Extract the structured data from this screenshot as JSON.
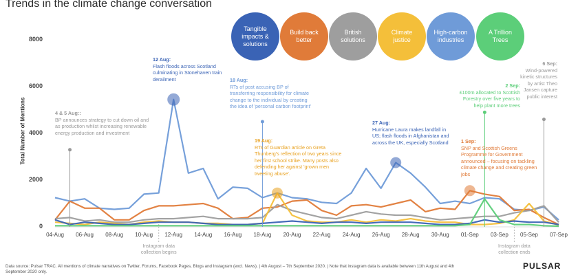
{
  "title": "Trends in the climate change conversation",
  "legend": [
    {
      "label": "Tangible impacts & solutions",
      "color": "#3a63b5"
    },
    {
      "label": "Build back better",
      "color": "#e07b39"
    },
    {
      "label": "British solutions",
      "color": "#9e9e9e"
    },
    {
      "label": "Climate justice",
      "color": "#f4bf3a"
    },
    {
      "label": "High-carbon industries",
      "color": "#6f9bd8"
    },
    {
      "label": "A Trillion Trees",
      "color": "#5cce79"
    }
  ],
  "chart_data": {
    "type": "line",
    "title": "Trends in the climate change conversation",
    "ylabel": "Total Number of Mentions",
    "ylim": [
      0,
      8000
    ],
    "yticks": [
      "0",
      "2000",
      "4000",
      "6000",
      "8000"
    ],
    "x_tick_labels": [
      "04-Aug",
      "06-Aug",
      "08-Aug",
      "10-Aug",
      "12-Aug",
      "14-Aug",
      "16-Aug",
      "18-Aug",
      "20-Aug",
      "22-Aug",
      "24-Aug",
      "26-Aug",
      "28-Aug",
      "30-Aug",
      "01-Sep",
      "03-Sep",
      "05-Sep",
      "07-Sep"
    ],
    "x": [
      "04-Aug",
      "05-Aug",
      "06-Aug",
      "07-Aug",
      "08-Aug",
      "09-Aug",
      "10-Aug",
      "11-Aug",
      "12-Aug",
      "13-Aug",
      "14-Aug",
      "15-Aug",
      "16-Aug",
      "17-Aug",
      "18-Aug",
      "19-Aug",
      "20-Aug",
      "21-Aug",
      "22-Aug",
      "23-Aug",
      "24-Aug",
      "25-Aug",
      "26-Aug",
      "27-Aug",
      "28-Aug",
      "29-Aug",
      "30-Aug",
      "31-Aug",
      "01-Sep",
      "02-Sep",
      "03-Sep",
      "04-Sep",
      "05-Sep",
      "06-Sep",
      "07-Sep"
    ],
    "grid": false,
    "series": [
      {
        "name": "Tangible impacts & solutions",
        "color": "#6f9bd8",
        "values": [
          1250,
          1100,
          1200,
          800,
          750,
          800,
          1400,
          1450,
          5450,
          2300,
          2500,
          1200,
          1700,
          1650,
          1250,
          1450,
          1250,
          1200,
          1050,
          1000,
          1450,
          2500,
          1650,
          2750,
          2300,
          1700,
          1000,
          1100,
          1000,
          1250,
          1200,
          750,
          700,
          850,
          300
        ]
      },
      {
        "name": "Build back better",
        "color": "#e07b39",
        "values": [
          300,
          1100,
          800,
          800,
          300,
          300,
          700,
          900,
          900,
          950,
          1000,
          800,
          350,
          400,
          800,
          850,
          1100,
          1150,
          700,
          500,
          900,
          950,
          850,
          1000,
          1150,
          650,
          800,
          750,
          1550,
          1400,
          1300,
          700,
          750,
          400,
          100
        ]
      },
      {
        "name": "British solutions",
        "color": "#9e9e9e",
        "values": [
          350,
          400,
          250,
          300,
          200,
          200,
          300,
          350,
          350,
          400,
          450,
          350,
          350,
          350,
          400,
          950,
          700,
          550,
          400,
          350,
          500,
          650,
          550,
          500,
          500,
          400,
          300,
          350,
          400,
          450,
          450,
          600,
          700,
          900,
          200
        ]
      },
      {
        "name": "Climate justice",
        "color": "#f4bf3a",
        "values": [
          200,
          150,
          100,
          200,
          150,
          100,
          200,
          250,
          200,
          200,
          150,
          150,
          100,
          100,
          150,
          1450,
          500,
          250,
          200,
          200,
          300,
          200,
          300,
          250,
          350,
          250,
          200,
          200,
          100,
          100,
          150,
          300,
          1000,
          250,
          80
        ]
      },
      {
        "name": "High-carbon industries",
        "color": "#3a63b5",
        "values": [
          300,
          100,
          200,
          150,
          100,
          100,
          150,
          200,
          200,
          200,
          150,
          100,
          100,
          100,
          150,
          200,
          250,
          200,
          150,
          200,
          200,
          150,
          200,
          200,
          200,
          150,
          100,
          100,
          150,
          300,
          200,
          250,
          200,
          200,
          100
        ]
      },
      {
        "name": "A Trillion Trees",
        "color": "#5cce79",
        "values": [
          50,
          50,
          50,
          50,
          50,
          50,
          50,
          50,
          50,
          50,
          50,
          50,
          50,
          50,
          50,
          50,
          50,
          50,
          50,
          50,
          50,
          50,
          50,
          50,
          50,
          50,
          50,
          50,
          100,
          1200,
          300,
          100,
          100,
          50,
          30
        ]
      }
    ],
    "annotations": [
      {
        "date": "4 & 5 Aug::",
        "text": "BP announces strategy to cut down oil and as production whilst increasing renewable energy production and investment",
        "color": "#999999",
        "marker_x": "05-Aug",
        "marker_y": 3300
      },
      {
        "date": "12 Aug:",
        "text": "Flash floods across Scotland culminating in Stonehaven train derailment",
        "color": "#3a63b5",
        "marker_x": "12-Aug",
        "marker_y": 5450
      },
      {
        "date": "18 Aug:",
        "text": "RTs of post accusing BP of transferring responsibility for climate change to the individual by creating the idea of 'personal carbon footprint'",
        "color": "#6f9bd8",
        "marker_x": "18-Aug",
        "marker_y": 4500
      },
      {
        "date": "19 Aug:",
        "text": "RTs of Guardian article on Greta Thunberg's reflection of two years since her first school strike. Many posts also defending her against 'grown men tweeting abuse'.",
        "color": "#e8a11f",
        "marker_x": "19-Aug",
        "marker_y": 1450
      },
      {
        "date": "27 Aug:",
        "text": "Hurricane Laura makes landfall in US; flash floods in Afghanistan and across the UK, especially Scotland",
        "color": "#3a63b5",
        "marker_x": "27-Aug",
        "marker_y": 2750
      },
      {
        "date": "2 Sep:",
        "text": "£100m allocated to Scottish Forestry over five years to help plant more trees",
        "color": "#5cce79",
        "marker_x": "02-Sep",
        "marker_y": 4900
      },
      {
        "date": "1 Sep:",
        "text": "SNP and Scottish Greens Programme for Government announced – focusing on tackling climate change and creating green jobs",
        "color": "#e07b39",
        "marker_x": "01-Sep",
        "marker_y": 1550
      },
      {
        "date": "6 Sep:",
        "text": "Wind-powered kinetic structures by artist Theo Jansen capture public interest",
        "color": "#999999",
        "marker_x": "06-Sep",
        "marker_y": 4600
      }
    ],
    "gap_labels": [
      {
        "text": "Instagram data collection begins",
        "x": "11-Aug"
      },
      {
        "text": "Instagram data collection ends",
        "x": "04-Sep"
      }
    ]
  },
  "source": "Data source: Pulsar TRAC. All mentions of climate narratives on Twitter, Forums, Facebook Pages, Blogs and Instagram (excl. News). | 4th August – 7th September 2020. | Note that instagram data is available between 11th August and 4th September 2020 only.",
  "brand": "PULSAR"
}
